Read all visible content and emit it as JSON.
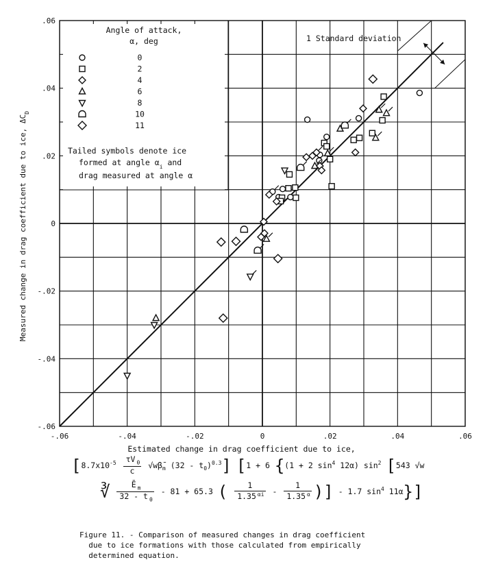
{
  "chart_data": {
    "type": "scatter",
    "title": "",
    "xlabel": "Estimated change in drag coefficient due to ice,",
    "ylabel": "Measured change in drag coefficient due to ice, ΔC_D",
    "xlim": [
      -0.06,
      0.06
    ],
    "ylim": [
      -0.06,
      0.06
    ],
    "grid": true,
    "x_ticks": [
      "-.06",
      "-.04",
      "-.02",
      "0",
      ".02",
      ".04",
      ".06"
    ],
    "y_ticks": [
      ".06",
      ".04",
      ".02",
      "0",
      "-.02",
      "-.04",
      "-.06"
    ],
    "reference_line": {
      "label": "perfect agreement",
      "slope": 1,
      "intercept": 0
    },
    "annotation": "1 Standard deviation",
    "std_band_offset": 0.0055,
    "legend": {
      "title_line1": "Angle of attack,",
      "title_line2": "α, deg",
      "position": "upper left",
      "entries": [
        {
          "symbol": "circle",
          "label": "0"
        },
        {
          "symbol": "square",
          "label": "2"
        },
        {
          "symbol": "diamond",
          "label": "4"
        },
        {
          "symbol": "triangle-up",
          "label": "6"
        },
        {
          "symbol": "triangle-down",
          "label": "8"
        },
        {
          "symbol": "pentagon",
          "label": "10"
        },
        {
          "symbol": "diamond-large",
          "label": "11"
        }
      ],
      "note_line1": "Tailed symbols denote ice",
      "note_line2": "formed at angle  α",
      "note_line2_sub": "i",
      "note_line2_end": "  and",
      "note_line3": "drag measured at angle  α"
    },
    "series": [
      {
        "name": "0",
        "symbol": "circle",
        "points": [
          [
            0.0465,
            0.0386
          ],
          [
            0.0285,
            0.0311
          ],
          [
            0.0133,
            0.0307
          ],
          [
            0.019,
            0.0256
          ],
          [
            0.017,
            0.0203
          ],
          [
            0.0168,
            0.0186
          ],
          [
            0.006,
            0.0102
          ],
          [
            0.0048,
            0.0078
          ],
          [
            0.0083,
            0.0078
          ]
        ],
        "tailed": [
          [
            0.003,
            0.0094
          ]
        ]
      },
      {
        "name": "2",
        "symbol": "square",
        "points": [
          [
            0.0359,
            0.0375
          ],
          [
            0.0355,
            0.0305
          ],
          [
            0.0325,
            0.0267
          ],
          [
            0.0287,
            0.0253
          ],
          [
            0.027,
            0.0247
          ],
          [
            0.0183,
            0.0238
          ],
          [
            0.019,
            0.0228
          ],
          [
            0.02,
            0.019
          ],
          [
            0.008,
            0.0145
          ],
          [
            0.0205,
            0.011
          ],
          [
            0.0097,
            0.0106
          ],
          [
            0.0077,
            0.0104
          ],
          [
            0.0099,
            0.0076
          ],
          [
            0.0058,
            0.0076
          ],
          [
            0.0054,
            0.0066
          ]
        ],
        "tailed": []
      },
      {
        "name": "4",
        "symbol": "diamond",
        "points": [
          [
            0.0298,
            0.034
          ],
          [
            0.0275,
            0.021
          ],
          [
            0.0148,
            0.02
          ],
          [
            0.013,
            0.0196
          ],
          [
            0.017,
            0.017
          ],
          [
            0.0175,
            0.0157
          ],
          [
            0.002,
            0.0085
          ],
          [
            0.0042,
            0.0065
          ],
          [
            0.0004,
            0.0005
          ],
          [
            0.0006,
            -0.0029
          ],
          [
            -0.0004,
            -0.004
          ]
        ],
        "tailed": [
          [
            0.016,
            0.021
          ]
        ]
      },
      {
        "name": "6",
        "symbol": "triangle-up",
        "points": [
          [
            0.023,
            0.028
          ],
          [
            -0.0315,
            -0.028
          ]
        ],
        "tailed": [
          [
            0.0345,
            0.0336
          ],
          [
            0.0367,
            0.0326
          ],
          [
            0.0335,
            0.0253
          ],
          [
            0.0193,
            0.0207
          ],
          [
            0.0155,
            0.017
          ],
          [
            0.0012,
            -0.0046
          ]
        ]
      },
      {
        "name": "8",
        "symbol": "triangle-down",
        "points": [
          [
            0.0066,
            0.0157
          ],
          [
            -0.032,
            -0.03
          ],
          [
            -0.04,
            -0.045
          ]
        ],
        "tailed": [
          [
            -0.0036,
            -0.0157
          ]
        ]
      },
      {
        "name": "10",
        "symbol": "pentagon",
        "points": [
          [
            -0.0054,
            -0.0018
          ]
        ],
        "tailed": [
          [
            0.0244,
            0.029
          ],
          [
            0.0113,
            0.0165
          ],
          [
            -0.0014,
            -0.008
          ]
        ]
      },
      {
        "name": "11",
        "symbol": "diamond-large",
        "points": [
          [
            0.0327,
            0.0427
          ],
          [
            0.0046,
            -0.0104
          ],
          [
            -0.0122,
            -0.0055
          ],
          [
            -0.0078,
            -0.0053
          ],
          [
            -0.0116,
            -0.028
          ]
        ],
        "tailed": []
      }
    ]
  },
  "x_axis": {
    "label": "Estimated change in drag coefficient due to ice,"
  },
  "formula": {
    "row1_a": "8.7x10",
    "row1_a_exp": "-5",
    "row1_frac_num": "τV",
    "row1_frac_num_sub": "0",
    "row1_frac_den": "c",
    "row1_b": "√wβ̄",
    "row1_b_sub": "m",
    "row1_c": " (32 - t",
    "row1_c_sub": "0",
    "row1_c_end": ")",
    "row1_c_exp": "0.3",
    "row1_d": "1 + 6",
    "row1_e": "(1 + 2 sin",
    "row1_e_exp": "4",
    "row1_e_end": " 12α) sin",
    "row1_e_exp2": "2",
    "row1_f": "543 √w",
    "row2_root": "∛",
    "row2_frac_num": "Ē",
    "row2_frac_num_sub": "m",
    "row2_frac_den": "32 - t",
    "row2_frac_den_sub": "0",
    "row2_a": " - 81 + 65.3 ",
    "row2_f1_num": "1",
    "row2_f1_den": "1.35",
    "row2_f1_den_exp": "αi",
    "row2_minus": " - ",
    "row2_f2_num": "1",
    "row2_f2_den": "1.35",
    "row2_f2_den_exp": "α",
    "row2_b": " - 1.7 sin",
    "row2_b_exp": "4",
    "row2_b_end": " 11α"
  },
  "caption": {
    "line1": "Figure 11. - Comparison of measured changes in drag coefficient",
    "line2": "  due to ice formations with those calculated from empirically",
    "line3": "  determined equation."
  }
}
